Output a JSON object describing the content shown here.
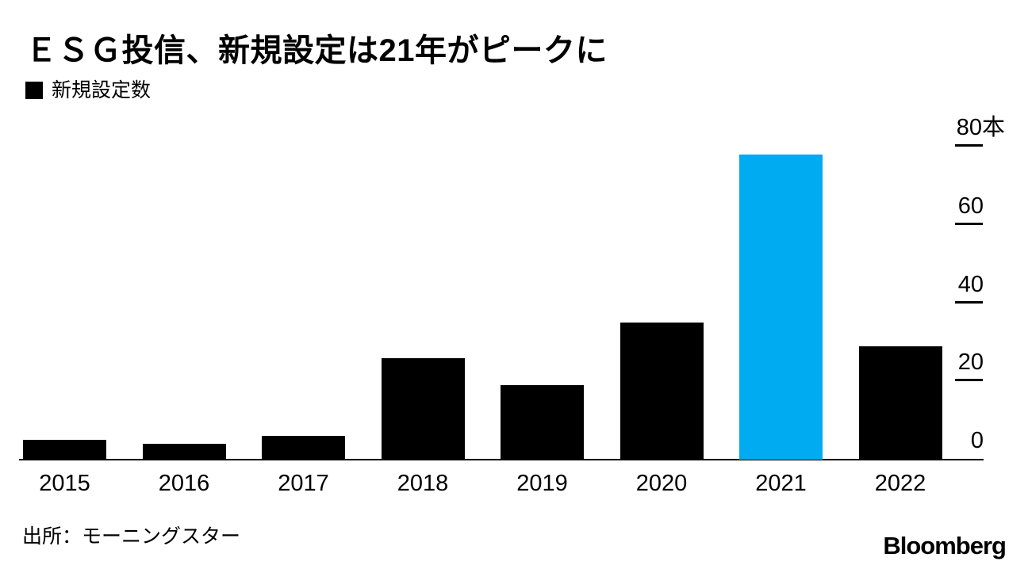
{
  "chart_data": {
    "type": "bar",
    "title": "ＥＳＧ投信、新規設定は21年がピークに",
    "legend": [
      "新規設定数"
    ],
    "legend_position": "top-left",
    "categories": [
      "2015",
      "2016",
      "2017",
      "2018",
      "2019",
      "2020",
      "2021",
      "2022"
    ],
    "values": [
      5,
      4,
      6,
      26,
      19,
      35,
      78,
      29
    ],
    "unit": "本",
    "highlight_category": "2021",
    "xlabel": "",
    "ylabel": "",
    "ylim": [
      0,
      80
    ],
    "yticks": [
      {
        "value": 0,
        "label": "0"
      },
      {
        "value": 20,
        "label": "20"
      },
      {
        "value": 40,
        "label": "40"
      },
      {
        "value": 60,
        "label": "60"
      },
      {
        "value": 80,
        "label": "80",
        "unit": "本"
      }
    ],
    "grid": false,
    "axis_side": "right",
    "colors": {
      "bar": "#000000",
      "highlight": "#00ABF2",
      "text": "#000000",
      "background": "#ffffff"
    }
  },
  "footer": {
    "source": "出所：モーニングスター",
    "brand": "Bloomberg"
  }
}
